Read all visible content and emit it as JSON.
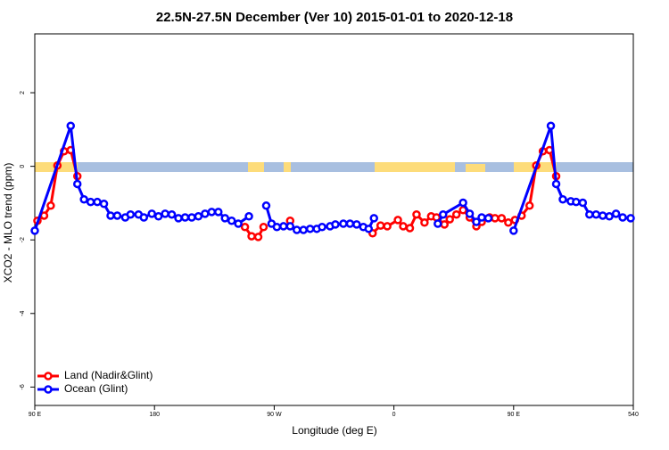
{
  "chart_data": {
    "type": "line",
    "title": "22.5N-27.5N December (Ver 10)   2015-01-01 to 2020-12-18",
    "x_label": "Longitude (deg E)",
    "y_label": "XCO2 - MLO trend (ppm)",
    "xlim": [
      90,
      540
    ],
    "ylim": [
      -6.5,
      3.6
    ],
    "xticks": [
      {
        "value": 90,
        "label": "90 E"
      },
      180,
      {
        "value": 270,
        "label": "90 W"
      },
      {
        "value": 360,
        "label": "0"
      },
      {
        "value": 450,
        "label": "90 E"
      },
      540
    ],
    "yticks": [
      -6,
      -4,
      -2,
      0,
      2
    ],
    "legend": "bottom-left",
    "series": [
      {
        "name": "Land (Nadir&Glint)",
        "color": "#ff0000",
        "x": [
          92,
          97,
          102,
          107,
          112,
          117,
          122,
          127,
          248,
          253,
          258,
          262,
          270,
          282,
          300,
          344,
          350,
          355,
          363,
          367,
          372,
          377,
          383,
          388,
          392,
          398,
          402,
          407,
          412,
          417,
          422,
          426,
          432,
          436,
          441,
          446,
          451,
          456,
          462,
          467,
          472,
          477,
          482
        ],
        "values": [
          -1.48,
          -1.34,
          -1.07,
          0.02,
          0.41,
          0.44,
          -0.27,
          null,
          -1.65,
          -1.9,
          -1.92,
          -1.65,
          null,
          -1.48,
          null,
          -1.82,
          -1.61,
          -1.63,
          -1.46,
          -1.63,
          -1.68,
          -1.31,
          -1.53,
          -1.36,
          -1.39,
          -1.58,
          -1.44,
          -1.31,
          -1.19,
          -1.39,
          -1.63,
          -1.51,
          -1.39,
          -1.41,
          -1.41,
          -1.53,
          -1.46,
          -1.34,
          -1.07,
          0.02,
          0.41,
          0.44,
          -0.27
        ]
      },
      {
        "name": "Ocean (Glint)",
        "color": "#0000ff",
        "x": [
          90,
          117,
          122,
          127,
          132,
          137,
          142,
          147,
          152,
          158,
          162,
          168,
          172,
          178,
          183,
          188,
          193,
          198,
          203,
          208,
          213,
          218,
          223,
          228,
          233,
          238,
          243,
          251,
          258,
          264,
          268,
          272,
          277,
          282,
          287,
          292,
          297,
          302,
          306,
          312,
          316,
          322,
          327,
          332,
          337,
          341,
          345,
          370,
          393,
          397,
          412,
          417,
          422,
          426,
          431,
          440,
          450,
          478,
          482,
          487,
          493,
          497,
          502,
          507,
          512,
          517,
          522,
          527,
          532,
          538
        ],
        "values": [
          -1.75,
          1.1,
          -0.48,
          -0.9,
          -0.97,
          -0.97,
          -1.02,
          -1.34,
          -1.34,
          -1.39,
          -1.31,
          -1.31,
          -1.39,
          -1.29,
          -1.36,
          -1.29,
          -1.31,
          -1.41,
          -1.39,
          -1.39,
          -1.36,
          -1.29,
          -1.24,
          -1.24,
          -1.41,
          -1.48,
          -1.56,
          -1.36,
          null,
          -1.07,
          -1.56,
          -1.65,
          -1.63,
          -1.63,
          -1.73,
          -1.73,
          -1.7,
          -1.7,
          -1.65,
          -1.63,
          -1.58,
          -1.56,
          -1.56,
          -1.58,
          -1.65,
          -1.7,
          -1.41,
          null,
          -1.56,
          -1.31,
          -0.99,
          -1.29,
          -1.51,
          -1.39,
          -1.41,
          null,
          -1.75,
          1.1,
          -0.48,
          -0.9,
          -0.95,
          -0.97,
          -0.99,
          -1.31,
          -1.31,
          -1.34,
          -1.36,
          -1.29,
          -1.39,
          -1.41
        ]
      }
    ]
  }
}
